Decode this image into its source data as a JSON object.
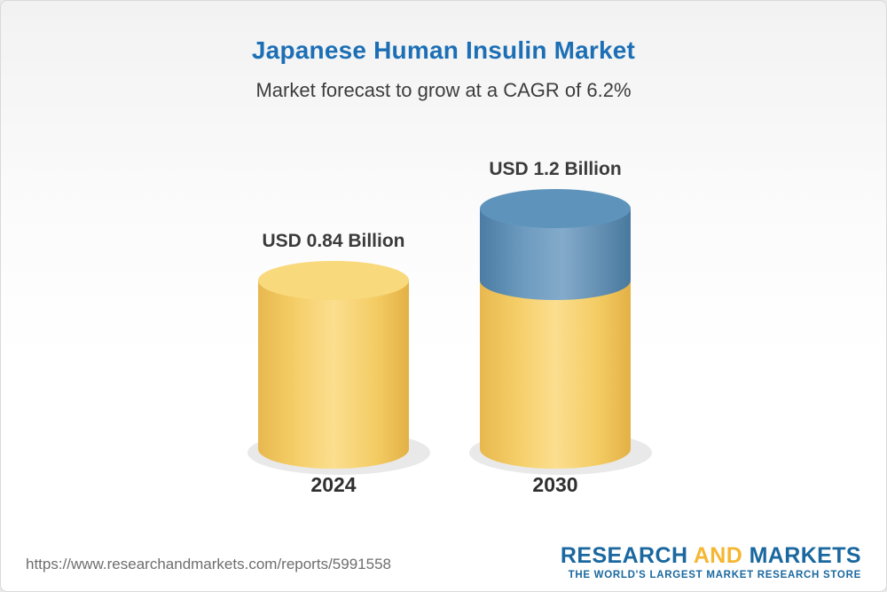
{
  "chart_data": {
    "type": "bar",
    "subtype": "3d-cylinder",
    "title": "Japanese Human Insulin Market",
    "subtitle": "Market forecast to grow at a CAGR of 6.2%",
    "cagr_percent": 6.2,
    "categories": [
      "2024",
      "2030"
    ],
    "values": [
      0.84,
      1.2
    ],
    "value_labels": [
      "USD 0.84 Billion",
      "USD 1.2 Billion"
    ],
    "unit": "USD Billion",
    "ylim": [
      0,
      1.2
    ],
    "grid": false,
    "legend": false,
    "colors": {
      "base_segment": "#F5CE68",
      "growth_segment": "#5E94BB"
    },
    "annotation": "Blue top segment of the 2030 cylinder shows growth above the 2024 value"
  },
  "footer": {
    "url": "https://www.researchandmarkets.com/reports/5991558",
    "logo": {
      "research": "RESEARCH",
      "and": "AND",
      "markets": "MARKETS",
      "tagline": "THE WORLD'S LARGEST MARKET RESEARCH STORE"
    }
  }
}
